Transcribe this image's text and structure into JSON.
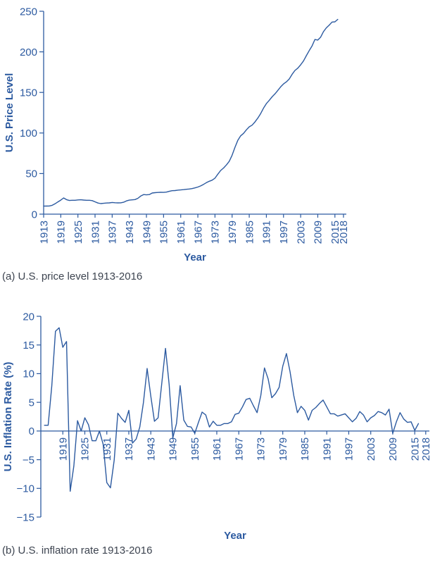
{
  "page": {
    "accent_color": "#2c5aa0",
    "caption_color": "#3d4450",
    "background": "#ffffff"
  },
  "chart_data": [
    {
      "id": "price-level",
      "type": "line",
      "caption": "(a) U.S. price level 1913-2016",
      "xlabel": "Year",
      "ylabel": "U.S. Price Level",
      "xlim": [
        1913,
        2019
      ],
      "ylim": [
        0,
        250
      ],
      "yticks": [
        0,
        50,
        100,
        150,
        200,
        250
      ],
      "xticks": [
        1913,
        1919,
        1925,
        1931,
        1937,
        1943,
        1949,
        1955,
        1961,
        1967,
        1973,
        1979,
        1985,
        1991,
        1997,
        2003,
        2009,
        2015,
        2018
      ],
      "grid": false,
      "legend": "none",
      "line_color": "#2c5aa0",
      "years": [
        1913,
        1914,
        1915,
        1916,
        1917,
        1918,
        1919,
        1920,
        1921,
        1922,
        1923,
        1924,
        1925,
        1926,
        1927,
        1928,
        1929,
        1930,
        1931,
        1932,
        1933,
        1934,
        1935,
        1936,
        1937,
        1938,
        1939,
        1940,
        1941,
        1942,
        1943,
        1944,
        1945,
        1946,
        1947,
        1948,
        1949,
        1950,
        1951,
        1952,
        1953,
        1954,
        1955,
        1956,
        1957,
        1958,
        1959,
        1960,
        1961,
        1962,
        1963,
        1964,
        1965,
        1966,
        1967,
        1968,
        1969,
        1970,
        1971,
        1972,
        1973,
        1974,
        1975,
        1976,
        1977,
        1978,
        1979,
        1980,
        1981,
        1982,
        1983,
        1984,
        1985,
        1986,
        1987,
        1988,
        1989,
        1990,
        1991,
        1992,
        1993,
        1994,
        1995,
        1996,
        1997,
        1998,
        1999,
        2000,
        2001,
        2002,
        2003,
        2004,
        2005,
        2006,
        2007,
        2008,
        2009,
        2010,
        2011,
        2012,
        2013,
        2014,
        2015,
        2016
      ],
      "values": [
        9.9,
        10.0,
        10.1,
        10.9,
        12.8,
        15.1,
        17.3,
        20.0,
        17.9,
        16.8,
        17.1,
        17.1,
        17.5,
        17.7,
        17.4,
        17.1,
        17.1,
        16.7,
        15.2,
        13.7,
        13.0,
        13.4,
        13.7,
        13.9,
        14.4,
        14.1,
        13.9,
        14.0,
        14.7,
        16.3,
        17.3,
        17.6,
        18.0,
        19.5,
        22.3,
        24.1,
        23.8,
        24.1,
        26.0,
        26.5,
        26.7,
        26.9,
        26.8,
        27.2,
        28.1,
        28.9,
        29.1,
        29.6,
        29.9,
        30.2,
        30.6,
        31.0,
        31.5,
        32.4,
        33.4,
        34.8,
        36.7,
        38.8,
        40.5,
        41.8,
        44.4,
        49.3,
        53.8,
        56.9,
        60.6,
        65.2,
        72.6,
        82.4,
        90.9,
        96.5,
        99.6,
        103.9,
        107.6,
        109.6,
        113.6,
        118.3,
        124.0,
        130.7,
        136.2,
        140.3,
        144.5,
        148.2,
        152.4,
        156.9,
        160.5,
        163.0,
        166.6,
        172.2,
        177.1,
        179.9,
        184.0,
        188.9,
        195.3,
        201.6,
        207.3,
        215.3,
        214.5,
        218.1,
        224.9,
        229.6,
        233.0,
        236.7,
        237.0,
        240.0
      ]
    },
    {
      "id": "inflation-rate",
      "type": "line",
      "caption": "(b) U.S. inflation rate 1913-2016",
      "xlabel": "Year",
      "ylabel": "U.S. Inflation Rate (%)",
      "xlim": [
        1913,
        2019
      ],
      "ylim": [
        -15,
        20
      ],
      "yticks": [
        -15,
        -10,
        -5,
        0,
        5,
        10,
        15,
        20
      ],
      "xticks": [
        1919,
        1925,
        1931,
        1937,
        1943,
        1949,
        1955,
        1961,
        1967,
        1973,
        1979,
        1985,
        1991,
        1997,
        2003,
        2009,
        2015,
        2018
      ],
      "grid": false,
      "legend": "none",
      "line_color": "#2c5aa0",
      "years": [
        1914,
        1915,
        1916,
        1917,
        1918,
        1919,
        1920,
        1921,
        1922,
        1923,
        1924,
        1925,
        1926,
        1927,
        1928,
        1929,
        1930,
        1931,
        1932,
        1933,
        1934,
        1935,
        1936,
        1937,
        1938,
        1939,
        1940,
        1941,
        1942,
        1943,
        1944,
        1945,
        1946,
        1947,
        1948,
        1949,
        1950,
        1951,
        1952,
        1953,
        1954,
        1955,
        1956,
        1957,
        1958,
        1959,
        1960,
        1961,
        1962,
        1963,
        1964,
        1965,
        1966,
        1967,
        1968,
        1969,
        1970,
        1971,
        1972,
        1973,
        1974,
        1975,
        1976,
        1977,
        1978,
        1979,
        1980,
        1981,
        1982,
        1983,
        1984,
        1985,
        1986,
        1987,
        1988,
        1989,
        1990,
        1991,
        1992,
        1993,
        1994,
        1995,
        1996,
        1997,
        1998,
        1999,
        2000,
        2001,
        2002,
        2003,
        2004,
        2005,
        2006,
        2007,
        2008,
        2009,
        2010,
        2011,
        2012,
        2013,
        2014,
        2015,
        2016
      ],
      "values": [
        1.0,
        1.0,
        7.9,
        17.4,
        18.0,
        14.6,
        15.6,
        -10.5,
        -6.1,
        1.8,
        0.0,
        2.3,
        1.1,
        -1.7,
        -1.7,
        0.0,
        -2.3,
        -9.0,
        -9.9,
        -5.1,
        3.1,
        2.2,
        1.5,
        3.6,
        -2.1,
        -1.4,
        0.7,
        5.0,
        10.9,
        6.1,
        1.7,
        2.3,
        8.3,
        14.4,
        8.1,
        -1.2,
        1.3,
        7.9,
        1.9,
        0.8,
        0.7,
        -0.4,
        1.5,
        3.3,
        2.8,
        0.7,
        1.7,
        1.0,
        1.0,
        1.3,
        1.3,
        1.6,
        2.9,
        3.1,
        4.2,
        5.5,
        5.7,
        4.4,
        3.2,
        6.2,
        11.0,
        9.1,
        5.8,
        6.5,
        7.6,
        11.3,
        13.5,
        10.3,
        6.2,
        3.2,
        4.3,
        3.6,
        1.9,
        3.6,
        4.1,
        4.8,
        5.4,
        4.2,
        3.0,
        3.0,
        2.6,
        2.8,
        3.0,
        2.3,
        1.6,
        2.2,
        3.4,
        2.8,
        1.6,
        2.3,
        2.7,
        3.4,
        3.2,
        2.8,
        3.8,
        -0.4,
        1.6,
        3.2,
        2.1,
        1.5,
        1.6,
        0.1,
        1.3
      ]
    }
  ]
}
